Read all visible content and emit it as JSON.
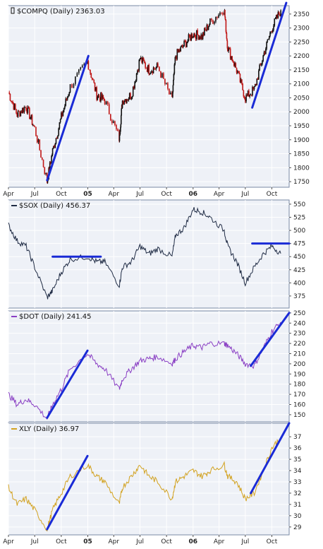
{
  "colors": {
    "panel_bg": "#eef1f7",
    "grid": "#ffffff",
    "frame": "#7a8aa6",
    "candle_up": "#111111",
    "candle_down": "#c01818",
    "sox_line": "#1f2b44",
    "dot_line": "#8a3fc4",
    "xly_line": "#d2a220",
    "trendline": "#1a2bd6"
  },
  "chart_data": [
    {
      "type": "candlestick",
      "title": "$COMPQ (Daily) 2363.03",
      "ylim": [
        1730,
        2380
      ],
      "yticks": [
        1750,
        1800,
        1850,
        1900,
        1950,
        2000,
        2050,
        2100,
        2150,
        2200,
        2250,
        2300,
        2350
      ],
      "series": [
        {
          "x": [
            "2004-04-01",
            "2004-05-01",
            "2004-06-01",
            "2004-07-01",
            "2004-08-13",
            "2004-09-01",
            "2004-10-01",
            "2004-11-01",
            "2004-12-31",
            "2005-02-01",
            "2005-03-01",
            "2005-04-20",
            "2005-05-01",
            "2005-06-01",
            "2005-07-01",
            "2005-08-01",
            "2005-09-01",
            "2005-10-20",
            "2005-11-01",
            "2005-12-01",
            "2006-01-01",
            "2006-02-01",
            "2006-03-01",
            "2006-04-19",
            "2006-05-01",
            "2006-06-01",
            "2006-07-01",
            "2006-08-01",
            "2006-09-01",
            "2006-10-01",
            "2006-11-01"
          ],
          "values": [
            2070,
            1990,
            2020,
            1940,
            1752,
            1860,
            1980,
            2090,
            2180,
            2060,
            2040,
            1905,
            2040,
            2060,
            2190,
            2150,
            2160,
            2040,
            2200,
            2240,
            2280,
            2270,
            2320,
            2370,
            2230,
            2150,
            2050,
            2080,
            2200,
            2300,
            2363
          ]
        }
      ],
      "trendlines": [
        {
          "x": [
            "2004-08-13",
            "2005-01-03"
          ],
          "y": [
            1755,
            2200
          ]
        },
        {
          "x": [
            "2006-07-25",
            "2006-11-20"
          ],
          "y": [
            2015,
            2390
          ]
        }
      ]
    },
    {
      "type": "line",
      "title": "$SOX (Daily) 456.37",
      "ylim": [
        352,
        558
      ],
      "yticks": [
        375,
        400,
        425,
        450,
        475,
        500,
        525,
        550
      ],
      "series": [
        {
          "x": [
            "2004-04-01",
            "2004-05-01",
            "2004-06-01",
            "2004-07-01",
            "2004-08-13",
            "2004-09-01",
            "2004-10-01",
            "2004-11-01",
            "2004-12-31",
            "2005-02-01",
            "2005-03-01",
            "2005-04-20",
            "2005-05-01",
            "2005-06-01",
            "2005-07-01",
            "2005-08-01",
            "2005-09-01",
            "2005-10-20",
            "2005-11-01",
            "2005-12-01",
            "2006-01-01",
            "2006-02-01",
            "2006-03-01",
            "2006-04-19",
            "2006-05-01",
            "2006-06-01",
            "2006-07-01",
            "2006-08-01",
            "2006-09-01",
            "2006-10-01",
            "2006-11-01"
          ],
          "values": [
            510,
            480,
            470,
            430,
            372,
            385,
            420,
            445,
            450,
            440,
            440,
            395,
            430,
            440,
            470,
            455,
            465,
            450,
            490,
            505,
            540,
            535,
            525,
            500,
            470,
            440,
            400,
            430,
            455,
            470,
            456
          ]
        }
      ],
      "trendlines": [
        {
          "x": [
            "2004-09-01",
            "2005-02-15"
          ],
          "y": [
            450,
            450
          ]
        },
        {
          "x": [
            "2006-07-25",
            "2006-11-30"
          ],
          "y": [
            475,
            475
          ]
        }
      ]
    },
    {
      "type": "line",
      "title": "$DOT (Daily) 241.45",
      "ylim": [
        143,
        252
      ],
      "yticks": [
        150,
        160,
        170,
        180,
        190,
        200,
        210,
        220,
        230,
        240,
        250
      ],
      "series": [
        {
          "x": [
            "2004-04-01",
            "2004-05-01",
            "2004-06-01",
            "2004-07-01",
            "2004-08-13",
            "2004-09-01",
            "2004-10-01",
            "2004-11-01",
            "2004-12-31",
            "2005-02-01",
            "2005-03-01",
            "2005-04-20",
            "2005-05-01",
            "2005-06-01",
            "2005-07-01",
            "2005-08-01",
            "2005-09-01",
            "2005-10-20",
            "2005-11-01",
            "2005-12-01",
            "2006-01-01",
            "2006-02-01",
            "2006-03-01",
            "2006-04-19",
            "2006-05-01",
            "2006-06-01",
            "2006-07-01",
            "2006-08-01",
            "2006-09-01",
            "2006-10-01",
            "2006-11-01"
          ],
          "values": [
            170,
            160,
            165,
            160,
            146,
            160,
            175,
            195,
            210,
            200,
            195,
            175,
            185,
            195,
            203,
            205,
            207,
            200,
            205,
            212,
            218,
            216,
            220,
            220,
            218,
            210,
            200,
            198,
            215,
            232,
            241
          ]
        }
      ],
      "trendlines": [
        {
          "x": [
            "2004-08-13",
            "2004-12-31"
          ],
          "y": [
            147,
            213
          ]
        },
        {
          "x": [
            "2006-07-20",
            "2006-11-30"
          ],
          "y": [
            198,
            250
          ]
        }
      ]
    },
    {
      "type": "line",
      "title": "XLY (Daily) 36.97",
      "ylim": [
        28.3,
        38.2
      ],
      "yticks": [
        29,
        30,
        31,
        32,
        33,
        34,
        35,
        36,
        37
      ],
      "series": [
        {
          "x": [
            "2004-04-01",
            "2004-05-01",
            "2004-06-01",
            "2004-07-01",
            "2004-08-13",
            "2004-09-01",
            "2004-10-01",
            "2004-11-01",
            "2004-12-31",
            "2005-02-01",
            "2005-03-01",
            "2005-04-20",
            "2005-05-01",
            "2005-06-01",
            "2005-07-01",
            "2005-08-01",
            "2005-09-01",
            "2005-10-20",
            "2005-11-01",
            "2005-12-01",
            "2006-01-01",
            "2006-02-01",
            "2006-03-01",
            "2006-04-19",
            "2006-05-01",
            "2006-06-01",
            "2006-07-01",
            "2006-08-01",
            "2006-09-01",
            "2006-10-01",
            "2006-11-01"
          ],
          "values": [
            32.5,
            31,
            31.5,
            30.5,
            28.8,
            30.5,
            32,
            33.5,
            34.5,
            33.5,
            33,
            31,
            32.5,
            33.5,
            34.5,
            33.5,
            33,
            31.5,
            33,
            33.5,
            34,
            33.5,
            34,
            34.5,
            33.5,
            33,
            31.5,
            32,
            34,
            36,
            36.97
          ]
        }
      ],
      "trendlines": [
        {
          "x": [
            "2004-08-13",
            "2004-12-31"
          ],
          "y": [
            28.8,
            35.3
          ]
        },
        {
          "x": [
            "2006-07-20",
            "2006-11-30"
          ],
          "y": [
            32,
            38.2
          ]
        }
      ]
    }
  ],
  "xaxis": {
    "ticks": [
      {
        "date": "2004-04-01",
        "label": "Apr",
        "bold": false
      },
      {
        "date": "2004-07-01",
        "label": "Jul",
        "bold": false
      },
      {
        "date": "2004-10-01",
        "label": "Oct",
        "bold": false
      },
      {
        "date": "2005-01-01",
        "label": "05",
        "bold": true
      },
      {
        "date": "2005-04-01",
        "label": "Apr",
        "bold": false
      },
      {
        "date": "2005-07-01",
        "label": "Jul",
        "bold": false
      },
      {
        "date": "2005-10-01",
        "label": "Oct",
        "bold": false
      },
      {
        "date": "2006-01-01",
        "label": "06",
        "bold": true
      },
      {
        "date": "2006-04-01",
        "label": "Apr",
        "bold": false
      },
      {
        "date": "2006-07-01",
        "label": "Jul",
        "bold": false
      },
      {
        "date": "2006-10-01",
        "label": "Oct",
        "bold": false
      }
    ]
  }
}
